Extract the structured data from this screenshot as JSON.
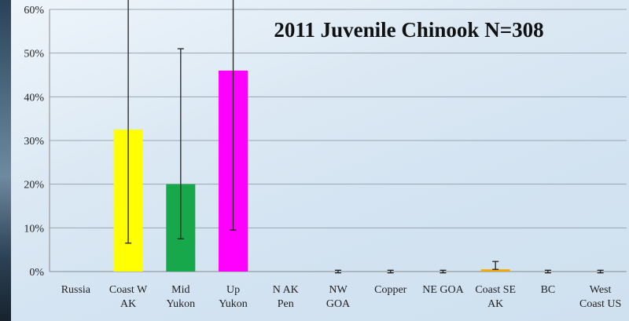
{
  "chart_data": {
    "type": "bar",
    "title": "2011 Juvenile Chinook N=308",
    "xlabel": "",
    "ylabel": "",
    "ylim": [
      0,
      60
    ],
    "y_tick_values": [
      0,
      10,
      20,
      30,
      40,
      50,
      60
    ],
    "y_tick_labels": [
      "0%",
      "10%",
      "20%",
      "30%",
      "40%",
      "50%",
      "60%"
    ],
    "grid": true,
    "legend": "none",
    "categories": [
      [
        "Russia"
      ],
      [
        "Coast W",
        "AK"
      ],
      [
        "Mid",
        "Yukon"
      ],
      [
        "Up",
        "Yukon"
      ],
      [
        "N AK",
        "Pen"
      ],
      [
        "NW",
        "GOA"
      ],
      [
        "Copper"
      ],
      [
        "NE GOA"
      ],
      [
        "Coast SE",
        "AK"
      ],
      [
        "BC"
      ],
      [
        "West",
        "Coast US"
      ]
    ],
    "values": [
      0,
      32.5,
      20,
      46,
      0,
      0,
      0,
      0,
      0.5,
      0,
      0
    ],
    "error_low": [
      0,
      26,
      12.5,
      36.5,
      0,
      0.3,
      0.3,
      0.3,
      0,
      0.3,
      0.3
    ],
    "error_high": [
      0,
      39,
      31,
      54.5,
      0,
      0.3,
      0.3,
      0.3,
      1.8,
      0.3,
      0.3
    ],
    "colors": [
      "#888888",
      "#ffff00",
      "#16a84a",
      "#ff00ff",
      "#888888",
      "#888888",
      "#888888",
      "#888888",
      "#f2a900",
      "#888888",
      "#888888"
    ]
  }
}
